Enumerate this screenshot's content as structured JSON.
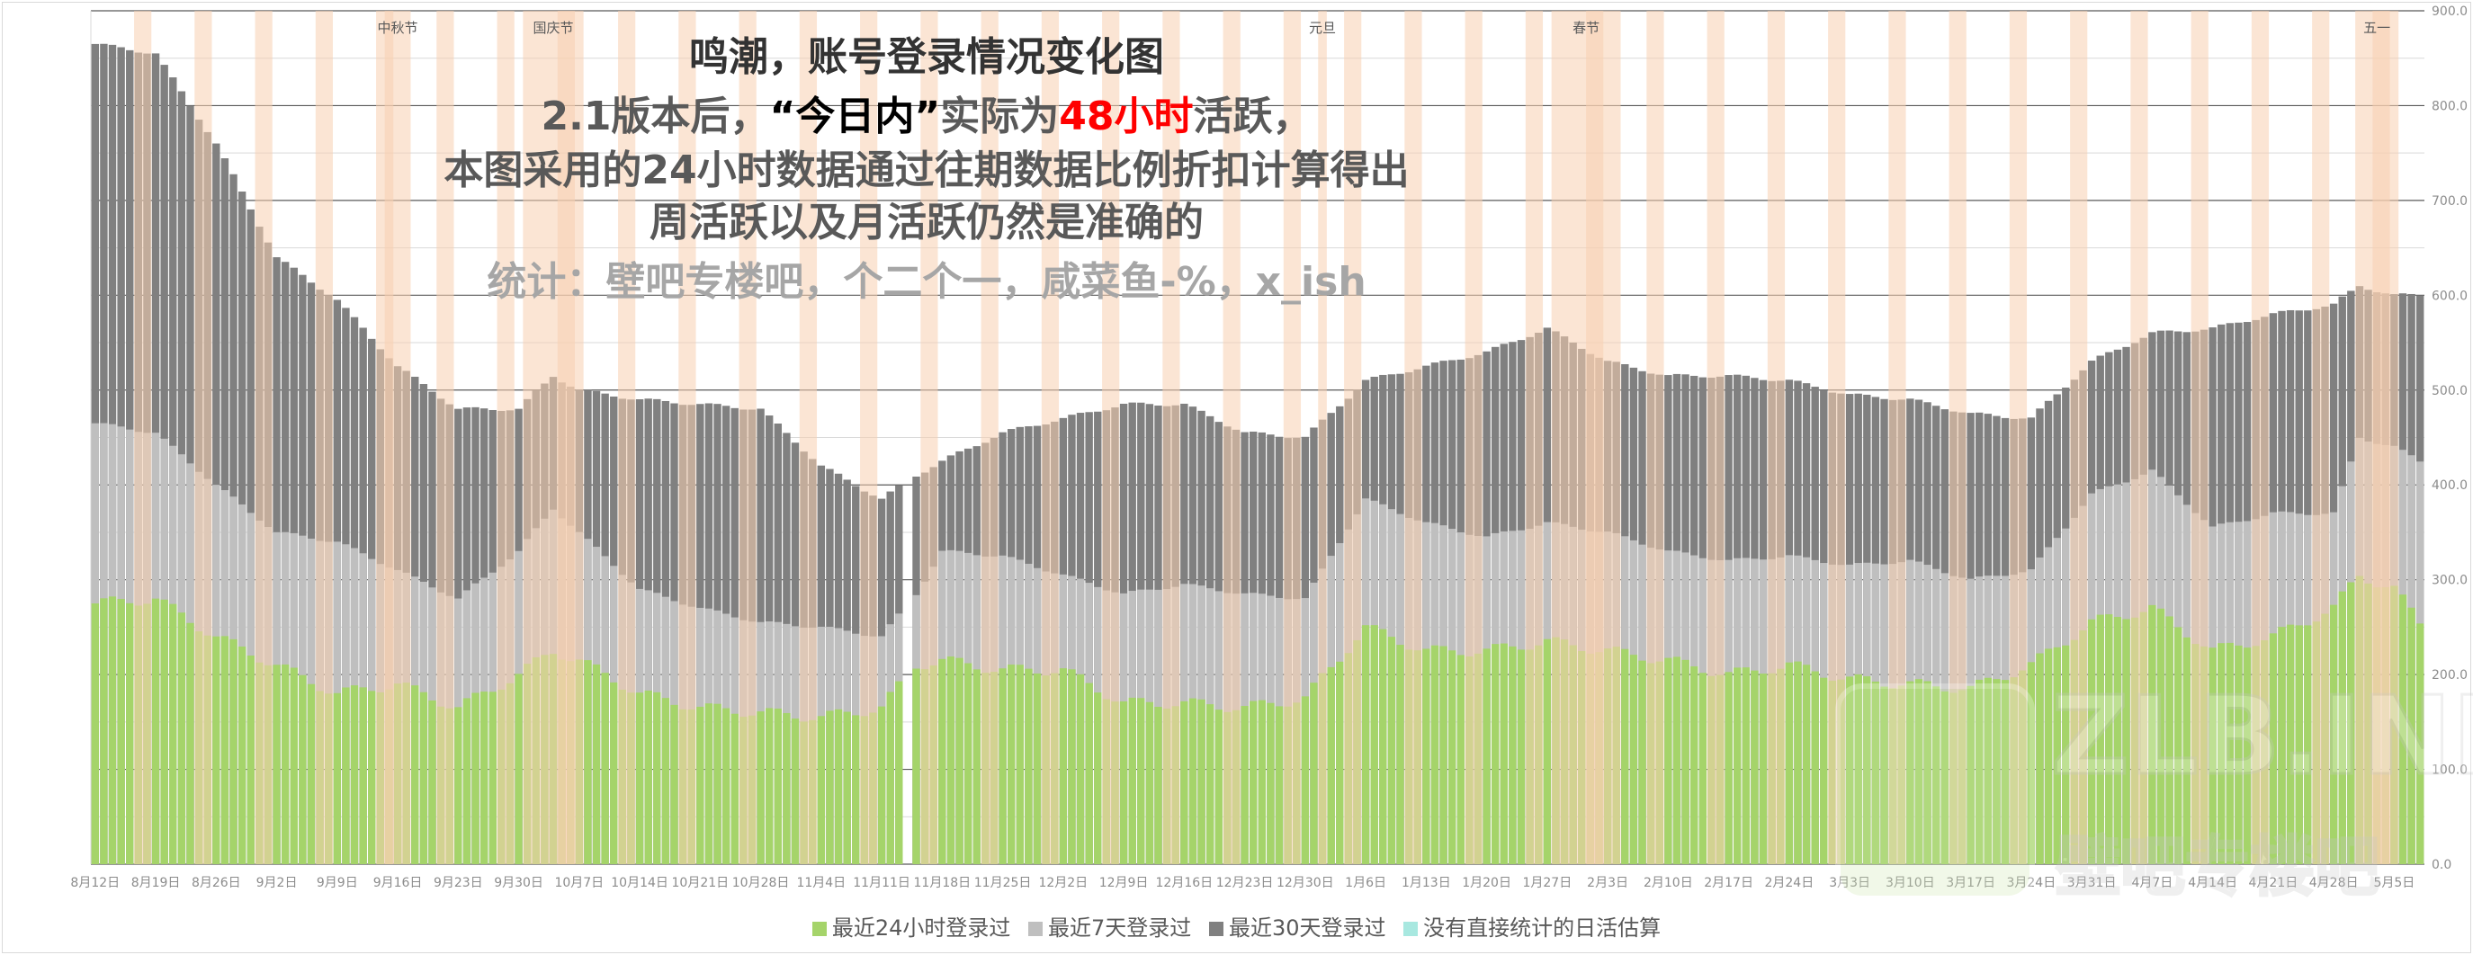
{
  "title": {
    "line1": "鸣潮，账号登录情况变化图",
    "line2_a": "2.1版本后，",
    "line2_b": "“今日内”",
    "line2_c": "实际为",
    "line2_d": "48小时",
    "line2_e": "活跃，",
    "line3": "本图采用的24小时数据通过往期数据比例折扣计算得出",
    "line4": "周活跃以及月活跃仍然是准确的",
    "line5": "统计：壁吧专楼吧，个二个一，咸菜鱼-%，x_ish"
  },
  "watermark": {
    "line1": "ZLB.INK",
    "line2": "壁吧专楼吧"
  },
  "colors": {
    "d24": "#a5d46a",
    "d7": "#bfbfbf",
    "d30": "#808080",
    "est": "#a8e8e0",
    "holiday": "#f8cfb0",
    "highlight": "#ff0000"
  },
  "chart_data": {
    "type": "bar",
    "start_date": "8月12日",
    "days": 270,
    "missing_day_index": 94,
    "ylim": [
      0,
      900
    ],
    "yticks": [
      "0.0",
      "100.0",
      "200.0",
      "300.0",
      "400.0",
      "500.0",
      "600.0",
      "700.0",
      "800.0",
      "900.0"
    ],
    "xticks": [
      "8月12日",
      "8月19日",
      "8月26日",
      "9月2日",
      "9月9日",
      "9月16日",
      "9月23日",
      "9月30日",
      "10月7日",
      "10月14日",
      "10月21日",
      "10月28日",
      "11月4日",
      "11月11日",
      "11月18日",
      "11月25日",
      "12月2日",
      "12月9日",
      "12月16日",
      "12月23日",
      "12月30日",
      "1月6日",
      "1月13日",
      "1月20日",
      "1月27日",
      "2月3日",
      "2月10日",
      "2月17日",
      "2月24日",
      "3月3日",
      "3月10日",
      "3月17日",
      "3月24日",
      "3月31日",
      "4月7日",
      "4月14日",
      "4月21日",
      "4月28日",
      "5月5日"
    ],
    "holidays": [
      {
        "name": "中秋节",
        "from": 34,
        "to": 36
      },
      {
        "name": "国庆节",
        "from": 50,
        "to": 56
      },
      {
        "name": "元旦",
        "from": 142,
        "to": 142
      },
      {
        "name": "春节",
        "from": 169,
        "to": 176
      },
      {
        "name": "五一",
        "from": 262,
        "to": 266
      }
    ],
    "anchor_day_index": [
      0,
      7,
      14,
      21,
      28,
      35,
      42,
      49,
      53,
      56,
      63,
      70,
      77,
      84,
      91,
      95,
      98,
      105,
      112,
      119,
      126,
      133,
      140,
      147,
      154,
      161,
      168,
      175,
      182,
      189,
      196,
      203,
      210,
      217,
      224,
      231,
      238,
      245,
      252,
      259,
      262,
      266,
      269
    ],
    "series": [
      {
        "name": "最近24小时登录过",
        "values": [
          275,
          280,
          240,
          210,
          180,
          190,
          165,
          200,
          225,
          215,
          180,
          165,
          160,
          155,
          165,
          210,
          215,
          205,
          205,
          170,
          170,
          165,
          175,
          250,
          225,
          225,
          235,
          225,
          215,
          200,
          210,
          195,
          190,
          185,
          210,
          255,
          270,
          225,
          240,
          270,
          305,
          290,
          255
        ]
      },
      {
        "name": "最近7天登录过",
        "values": [
          465,
          455,
          400,
          350,
          340,
          310,
          280,
          330,
          375,
          350,
          290,
          270,
          255,
          250,
          240,
          285,
          330,
          325,
          305,
          285,
          295,
          285,
          280,
          385,
          360,
          345,
          360,
          350,
          330,
          320,
          325,
          315,
          320,
          300,
          310,
          390,
          415,
          355,
          370,
          370,
          450,
          440,
          425
        ]
      },
      {
        "name": "最近30天登录过",
        "values": [
          865,
          855,
          760,
          640,
          595,
          525,
          480,
          480,
          515,
          500,
          490,
          485,
          480,
          420,
          385,
          410,
          425,
          455,
          470,
          485,
          485,
          455,
          450,
          510,
          525,
          540,
          565,
          530,
          515,
          515,
          510,
          495,
          490,
          475,
          470,
          530,
          560,
          565,
          580,
          590,
          610,
          600,
          600
        ]
      },
      {
        "name": "没有直接统计的日活估算",
        "values": []
      }
    ]
  }
}
